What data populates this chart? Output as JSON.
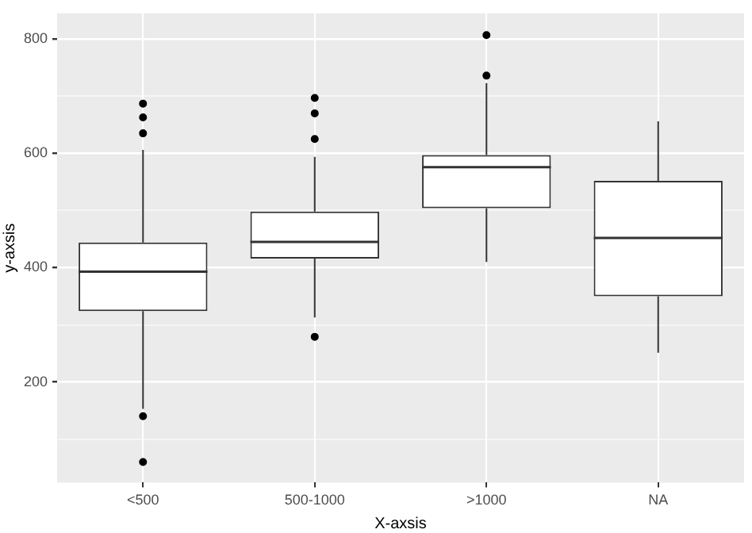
{
  "chart_data": {
    "type": "box",
    "xlabel": "X-axsis",
    "ylabel": "y-axsis",
    "categories": [
      "<500",
      "500-1000",
      ">1000",
      "NA"
    ],
    "boxes": [
      {
        "low": 153,
        "q1": 324,
        "median": 393,
        "q3": 444,
        "high": 606,
        "outliers": [
          687,
          663,
          635,
          140,
          60
        ]
      },
      {
        "low": 313,
        "q1": 416,
        "median": 445,
        "q3": 498,
        "high": 594,
        "outliers": [
          697,
          670,
          625,
          279
        ]
      },
      {
        "low": 410,
        "q1": 504,
        "median": 576,
        "q3": 597,
        "high": 723,
        "outliers": [
          807,
          736
        ]
      },
      {
        "low": 251,
        "q1": 350,
        "median": 452,
        "q3": 552,
        "high": 656
      }
    ],
    "ylim": [
      24,
      845
    ],
    "yticks": [
      {
        "value": 100,
        "label": null
      },
      200,
      {
        "value": 300,
        "label": null
      },
      400,
      {
        "value": 500,
        "label": null
      },
      600,
      {
        "value": 700,
        "label": null
      },
      800
    ],
    "grid": true,
    "legend": false
  }
}
